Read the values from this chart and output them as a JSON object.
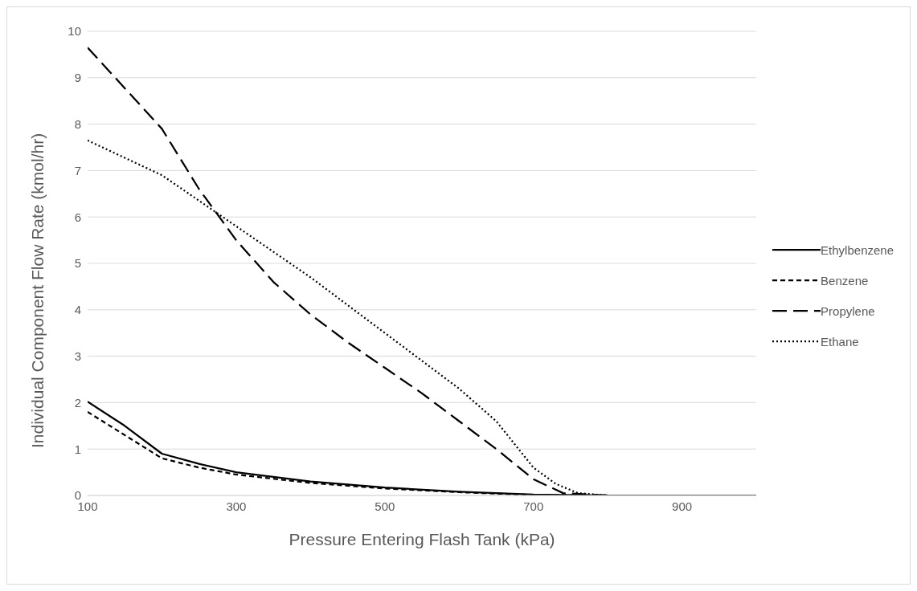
{
  "chart_data": {
    "type": "line",
    "xlabel": "Pressure Entering Flash Tank (kPa)",
    "ylabel": "Individual Component Flow Rate (kmol/hr)",
    "xlim": [
      100,
      1000
    ],
    "xticks": [
      100,
      300,
      500,
      700,
      900
    ],
    "ylim": [
      0,
      10
    ],
    "yticks": [
      0,
      1,
      2,
      3,
      4,
      5,
      6,
      7,
      8,
      9,
      10
    ],
    "grid": "y",
    "legend": "right",
    "marker": "none",
    "series": [
      {
        "name": "Ethylbenzene",
        "color": "#000000",
        "line_style": "solid",
        "x": [
          100,
          150,
          200,
          250,
          300,
          400,
          500,
          600,
          700,
          800,
          1000
        ],
        "values": [
          2.02,
          1.5,
          0.9,
          0.68,
          0.5,
          0.3,
          0.17,
          0.08,
          0.02,
          0,
          0
        ]
      },
      {
        "name": "Benzene",
        "color": "#000000",
        "line_style": "dashed",
        "x": [
          100,
          150,
          200,
          250,
          300,
          400,
          500,
          600,
          700,
          800,
          1000
        ],
        "values": [
          1.8,
          1.3,
          0.8,
          0.6,
          0.45,
          0.27,
          0.15,
          0.07,
          0.01,
          0,
          0
        ]
      },
      {
        "name": "Propylene",
        "color": "#000000",
        "line_style": "longdash",
        "x": [
          100,
          200,
          250,
          300,
          350,
          400,
          450,
          500,
          550,
          600,
          650,
          700,
          740,
          800,
          1000
        ],
        "values": [
          9.65,
          7.9,
          6.6,
          5.5,
          4.6,
          3.9,
          3.3,
          2.75,
          2.2,
          1.6,
          1.0,
          0.35,
          0.05,
          0,
          0
        ]
      },
      {
        "name": "Ethane",
        "color": "#000000",
        "line_style": "dotted",
        "x": [
          100,
          200,
          300,
          400,
          500,
          600,
          650,
          700,
          730,
          760,
          800,
          1000
        ],
        "values": [
          7.65,
          6.9,
          5.8,
          4.7,
          3.5,
          2.3,
          1.6,
          0.6,
          0.25,
          0.05,
          0,
          0
        ]
      }
    ]
  }
}
